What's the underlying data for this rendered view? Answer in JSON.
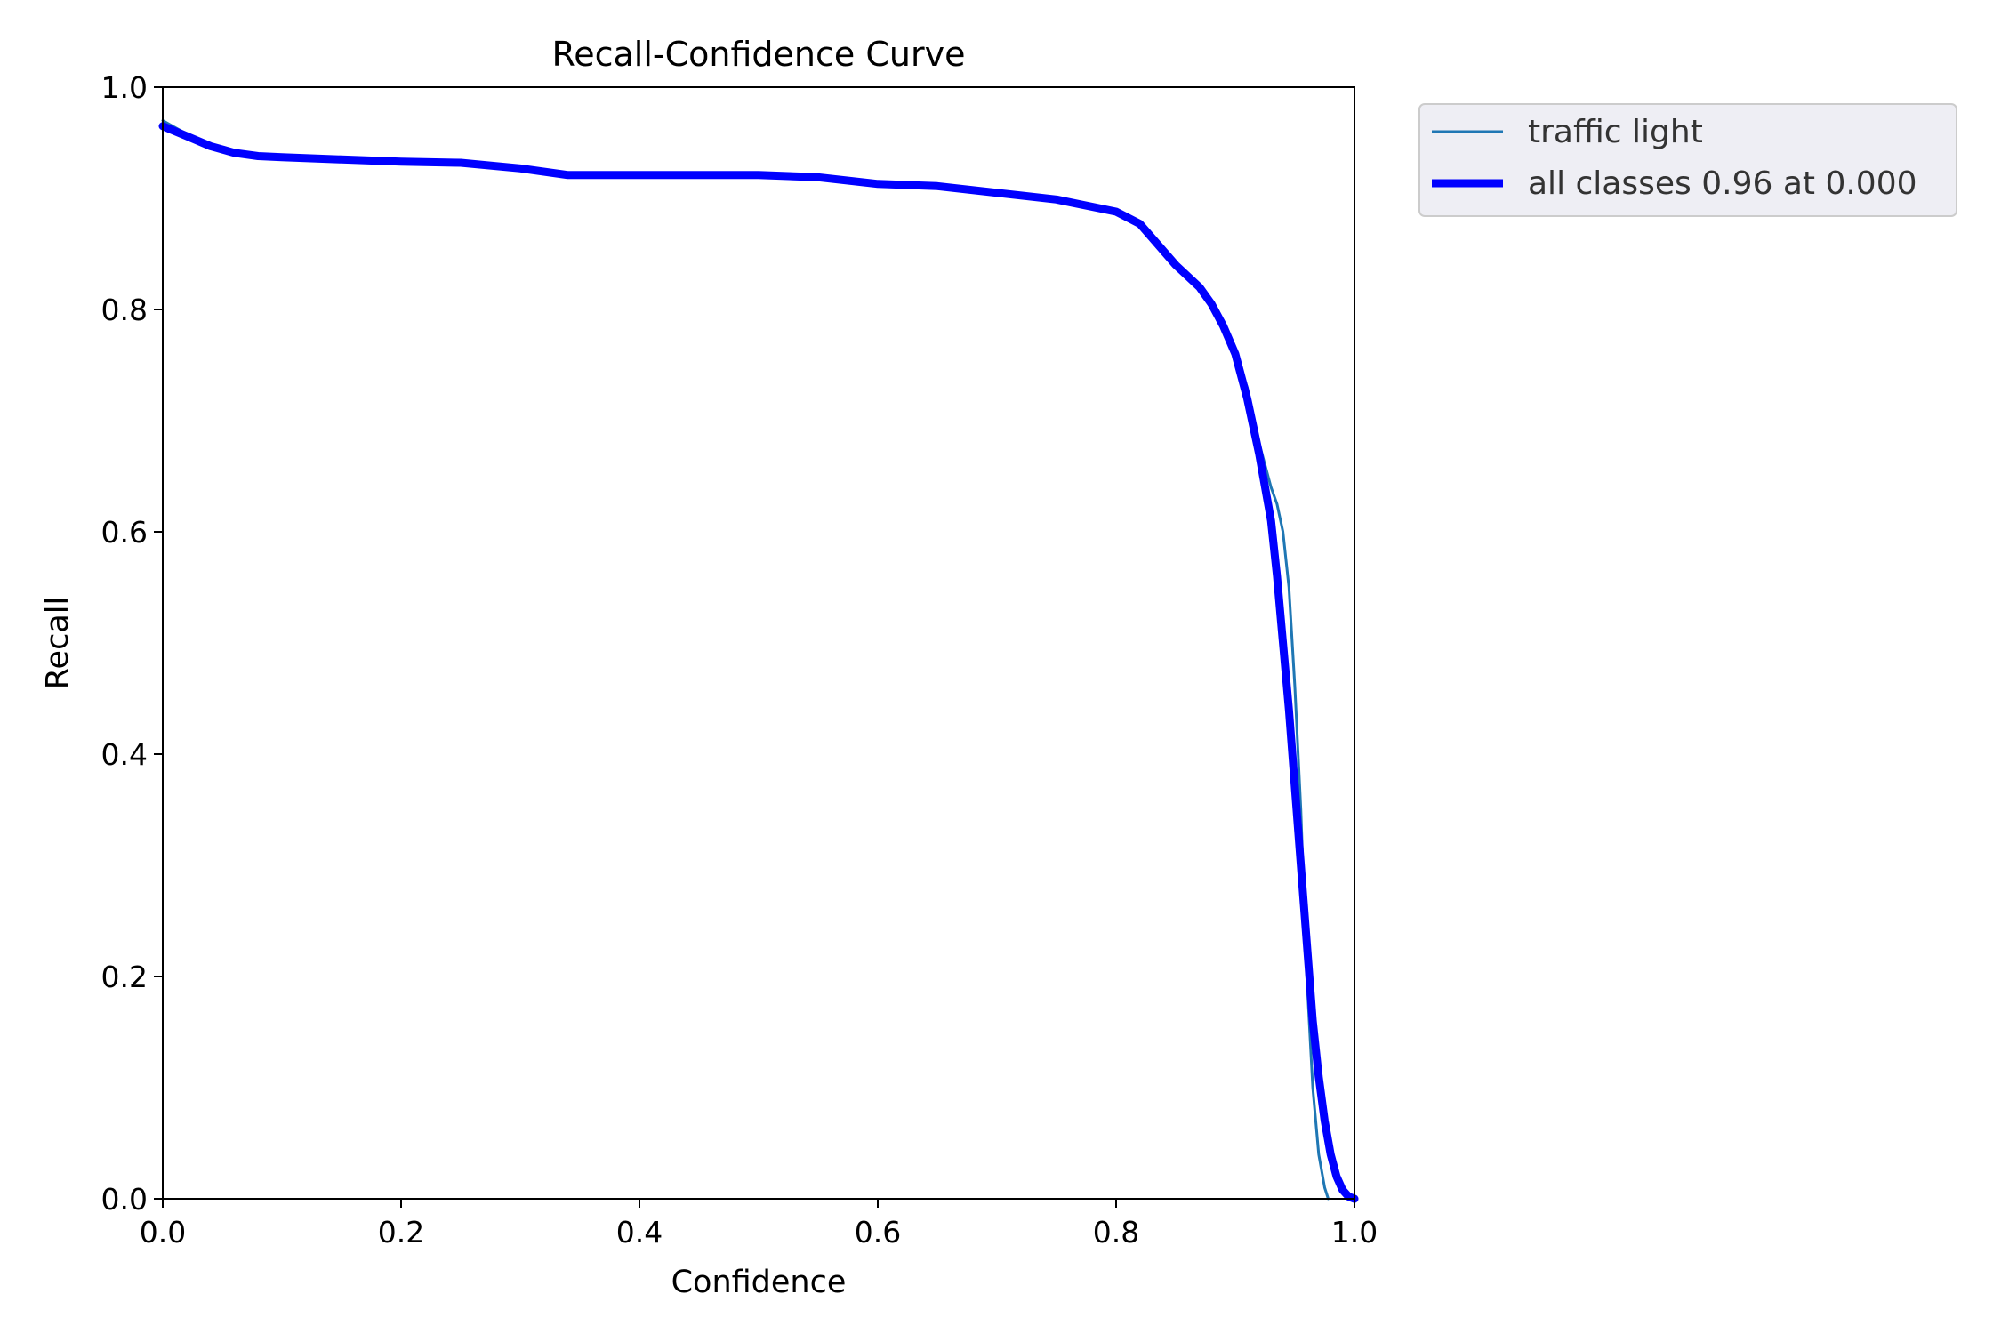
{
  "chart_data": {
    "type": "line",
    "title": "Recall-Confidence Curve",
    "xlabel": "Confidence",
    "ylabel": "Recall",
    "xlim": [
      0.0,
      1.0
    ],
    "ylim": [
      0.0,
      1.0
    ],
    "x_ticks": [
      "0.0",
      "0.2",
      "0.4",
      "0.6",
      "0.8",
      "1.0"
    ],
    "y_ticks": [
      "0.0",
      "0.2",
      "0.4",
      "0.6",
      "0.8",
      "1.0"
    ],
    "grid": false,
    "legend_position": "outside-top-right",
    "series": [
      {
        "name": "traffic light",
        "color": "#1f77b4",
        "style": "thin",
        "x": [
          0.0,
          0.02,
          0.04,
          0.06,
          0.08,
          0.1,
          0.15,
          0.2,
          0.25,
          0.3,
          0.34,
          0.4,
          0.5,
          0.55,
          0.6,
          0.65,
          0.7,
          0.75,
          0.8,
          0.82,
          0.85,
          0.87,
          0.88,
          0.89,
          0.9,
          0.91,
          0.92,
          0.93,
          0.935,
          0.94,
          0.945,
          0.95,
          0.955,
          0.96,
          0.965,
          0.97,
          0.975,
          0.978
        ],
        "y": [
          0.97,
          0.958,
          0.948,
          0.942,
          0.939,
          0.937,
          0.936,
          0.933,
          0.932,
          0.927,
          0.921,
          0.921,
          0.921,
          0.919,
          0.913,
          0.911,
          0.905,
          0.899,
          0.888,
          0.878,
          0.84,
          0.82,
          0.805,
          0.79,
          0.76,
          0.73,
          0.68,
          0.64,
          0.625,
          0.6,
          0.55,
          0.46,
          0.35,
          0.2,
          0.1,
          0.04,
          0.01,
          0.0
        ]
      },
      {
        "name": "all classes 0.96 at 0.000",
        "color": "#0000ff",
        "style": "thick",
        "x": [
          0.0,
          0.02,
          0.04,
          0.06,
          0.08,
          0.1,
          0.15,
          0.2,
          0.25,
          0.3,
          0.34,
          0.4,
          0.5,
          0.55,
          0.6,
          0.65,
          0.7,
          0.75,
          0.8,
          0.82,
          0.85,
          0.87,
          0.88,
          0.89,
          0.9,
          0.91,
          0.92,
          0.93,
          0.935,
          0.94,
          0.945,
          0.95,
          0.955,
          0.96,
          0.965,
          0.97,
          0.975,
          0.98,
          0.985,
          0.99,
          0.995,
          1.0
        ],
        "y": [
          0.965,
          0.956,
          0.947,
          0.941,
          0.938,
          0.937,
          0.935,
          0.933,
          0.932,
          0.927,
          0.921,
          0.921,
          0.921,
          0.919,
          0.913,
          0.911,
          0.905,
          0.899,
          0.888,
          0.877,
          0.84,
          0.82,
          0.805,
          0.785,
          0.76,
          0.72,
          0.67,
          0.61,
          0.56,
          0.5,
          0.44,
          0.37,
          0.3,
          0.23,
          0.16,
          0.11,
          0.07,
          0.04,
          0.02,
          0.008,
          0.002,
          0.0
        ]
      }
    ]
  }
}
